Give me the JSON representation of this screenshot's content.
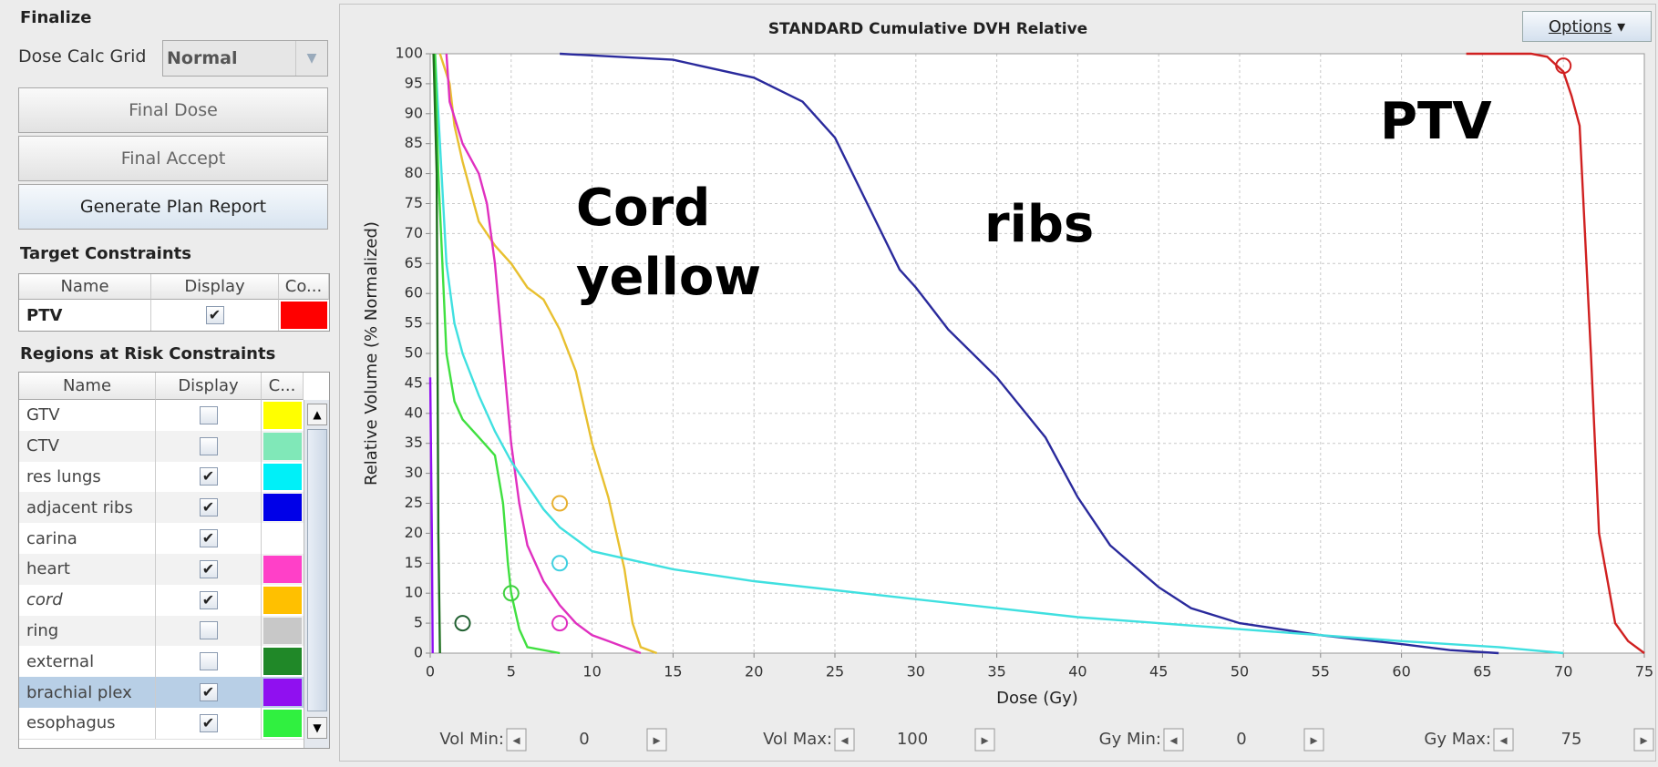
{
  "finalize": {
    "title": "Finalize",
    "grid_label": "Dose Calc Grid",
    "grid_value": "Normal",
    "buttons": [
      "Final Dose",
      "Final Accept",
      "Generate Plan Report"
    ]
  },
  "target_constraints": {
    "title": "Target Constraints",
    "columns": [
      "Name",
      "Display",
      "Co..."
    ],
    "rows": [
      {
        "name": "PTV",
        "display": true,
        "color": "#ff0000"
      }
    ]
  },
  "regions": {
    "title": "Regions at Risk Constraints",
    "columns": [
      "Name",
      "Display",
      "C..."
    ],
    "rows": [
      {
        "name": "GTV",
        "display": false,
        "color": "#ffff00"
      },
      {
        "name": "CTV",
        "display": false,
        "color": "#80e8b8"
      },
      {
        "name": "res lungs",
        "display": true,
        "color": "#00f0f8"
      },
      {
        "name": "adjacent ribs",
        "display": true,
        "color": "#0000e8"
      },
      {
        "name": "carina",
        "display": true,
        "color": "#ffffff"
      },
      {
        "name": "heart",
        "display": true,
        "color": "#ff40c8"
      },
      {
        "name": "cord",
        "display": true,
        "color": "#ffc000"
      },
      {
        "name": "ring",
        "display": false,
        "color": "#c8c8c8"
      },
      {
        "name": "external",
        "display": false,
        "color": "#208828"
      },
      {
        "name": "brachial plex",
        "display": true,
        "color": "#9010f0",
        "selected": true
      },
      {
        "name": "esophagus",
        "display": true,
        "color": "#30f040"
      }
    ]
  },
  "options": "Options",
  "chart_data": {
    "type": "line",
    "title": "STANDARD Cumulative DVH Relative",
    "x_label": "Dose (Gy)",
    "y_label": "Relative Volume (% Normalized)",
    "xlim": [
      0,
      75
    ],
    "ylim": [
      0,
      100
    ],
    "xticks": [
      0,
      5,
      10,
      15,
      20,
      25,
      30,
      35,
      40,
      45,
      50,
      55,
      60,
      65,
      70,
      75
    ],
    "yticks": [
      0,
      5,
      10,
      15,
      20,
      25,
      30,
      35,
      40,
      45,
      50,
      55,
      60,
      65,
      70,
      75,
      80,
      85,
      90,
      95,
      100
    ],
    "grid": true,
    "series": [
      {
        "color": "#2a2a9c",
        "x": [
          8,
          15,
          20,
          23,
          25,
          27,
          29,
          30,
          32,
          35,
          38,
          40,
          42,
          45,
          47,
          50,
          55,
          60,
          63,
          66
        ],
        "values": [
          100,
          99,
          96,
          92,
          86,
          75,
          64,
          61,
          54,
          46,
          36,
          26,
          18,
          11,
          7.5,
          5,
          3,
          1.5,
          0.5,
          0
        ]
      },
      {
        "color": "#d02020",
        "x": [
          64,
          68,
          69,
          70,
          70.5,
          71,
          71.7,
          72.2,
          73.2,
          74,
          75
        ],
        "values": [
          100,
          100,
          99.5,
          97,
          93,
          88,
          50,
          20,
          5,
          2,
          0
        ]
      },
      {
        "color": "#e8c030",
        "x": [
          0.6,
          1.2,
          1.5,
          2,
          3,
          4,
          5,
          6,
          7,
          8,
          9,
          10,
          11,
          12,
          12.5,
          13,
          14
        ],
        "values": [
          100,
          95,
          88,
          82,
          72,
          68,
          65,
          61,
          59,
          54,
          47,
          35,
          26,
          14,
          5,
          1,
          0
        ]
      },
      {
        "color": "#e030c0",
        "x": [
          1,
          1.2,
          2,
          3,
          3.5,
          4,
          4.5,
          5,
          5.5,
          6,
          7,
          8,
          9,
          10,
          11,
          12,
          13
        ],
        "values": [
          100,
          92,
          85,
          80,
          75,
          65,
          50,
          35,
          25,
          18,
          12,
          8,
          5,
          3,
          2,
          1,
          0
        ]
      },
      {
        "color": "#40e0e0",
        "x": [
          0.3,
          0.5,
          1,
          1.5,
          2,
          3,
          4,
          5,
          6,
          7,
          8,
          10,
          15,
          20,
          30,
          40,
          50,
          60,
          66,
          70
        ],
        "values": [
          100,
          90,
          65,
          55,
          50,
          43,
          37,
          32,
          28,
          24,
          21,
          17,
          14,
          12,
          9,
          6,
          4,
          2,
          1,
          0
        ]
      },
      {
        "color": "#40e040",
        "x": [
          0.3,
          0.5,
          1,
          1.5,
          2,
          3,
          4,
          4.5,
          4.8,
          5,
          5.5,
          6,
          8
        ],
        "values": [
          100,
          80,
          50,
          42,
          39,
          36,
          33,
          25,
          15,
          10,
          4,
          1,
          0
        ]
      },
      {
        "color": "#207020",
        "x": [
          0.2,
          0.4,
          0.5,
          0.6
        ],
        "values": [
          100,
          80,
          20,
          0
        ]
      },
      {
        "color": "#9010f0",
        "x": [
          0,
          0.1,
          0.15
        ],
        "values": [
          46,
          20,
          0
        ]
      }
    ],
    "markers": [
      {
        "x": 70,
        "y": 98,
        "color": "#d02020"
      },
      {
        "x": 8,
        "y": 25,
        "color": "#e8b030"
      },
      {
        "x": 8,
        "y": 15,
        "color": "#40d0e0"
      },
      {
        "x": 8,
        "y": 5,
        "color": "#e030c0"
      },
      {
        "x": 5,
        "y": 10,
        "color": "#40d040"
      },
      {
        "x": 2,
        "y": 5,
        "color": "#206030"
      }
    ],
    "annotations": [
      "Cord",
      "yellow",
      "ribs",
      "PTV"
    ]
  },
  "controls": [
    {
      "label": "Vol Min:",
      "value": 0
    },
    {
      "label": "Vol Max:",
      "value": 100
    },
    {
      "label": "Gy Min:",
      "value": 0
    },
    {
      "label": "Gy Max:",
      "value": 75
    }
  ]
}
